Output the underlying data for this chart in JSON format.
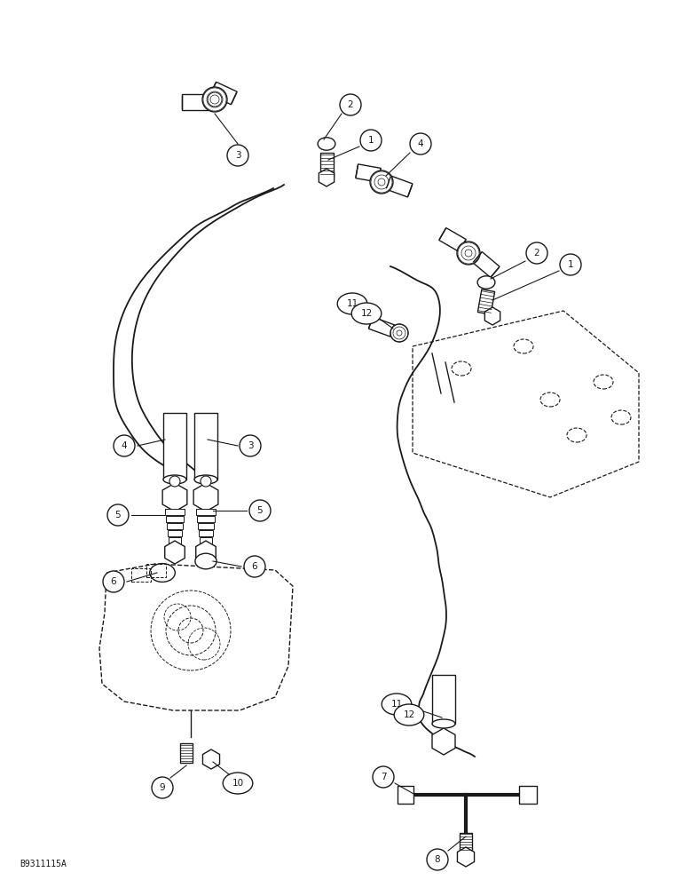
{
  "bg_color": "#ffffff",
  "line_color": "#1a1a1a",
  "fig_width": 7.72,
  "fig_height": 10.0,
  "dpi": 100,
  "watermark": "B9311115A",
  "lw": 1.0
}
